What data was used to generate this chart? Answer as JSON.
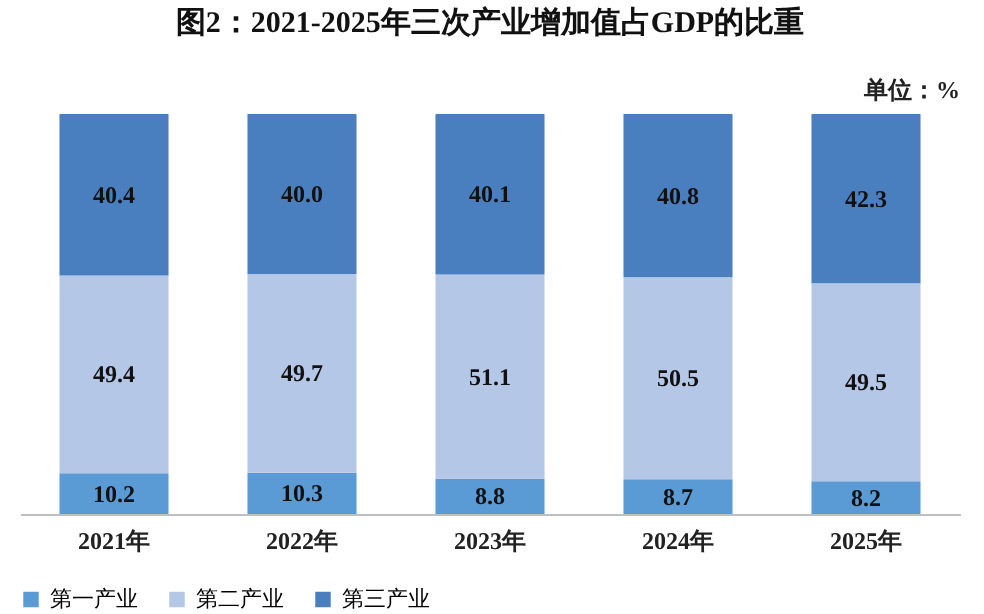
{
  "chart_data": {
    "type": "bar",
    "stacked": true,
    "title": "图2：2021-2025年三次产业增加值占GDP的比重",
    "annotations": [
      "单位：%"
    ],
    "categories": [
      "2021年",
      "2022年",
      "2023年",
      "2024年",
      "2025年"
    ],
    "series": [
      {
        "name": "第一产业",
        "color": "#5b9bd5",
        "values": [
          10.2,
          10.3,
          8.8,
          8.7,
          8.2
        ],
        "value_labels": [
          "10.2",
          "10.3",
          "8.8",
          "8.7",
          "8.2"
        ]
      },
      {
        "name": "第二产业",
        "color": "#b4c7e7",
        "values": [
          49.4,
          49.7,
          51.1,
          50.5,
          49.5
        ],
        "value_labels": [
          "49.4",
          "49.7",
          "51.1",
          "50.5",
          "49.5"
        ]
      },
      {
        "name": "第三产业",
        "color": "#4a7fbf",
        "values": [
          40.4,
          40.0,
          40.1,
          40.8,
          42.3
        ],
        "value_labels": [
          "40.4",
          "40.0",
          "40.1",
          "40.8",
          "42.3"
        ]
      }
    ],
    "legend": "bottom",
    "grid": false,
    "tick_labels": "x"
  }
}
